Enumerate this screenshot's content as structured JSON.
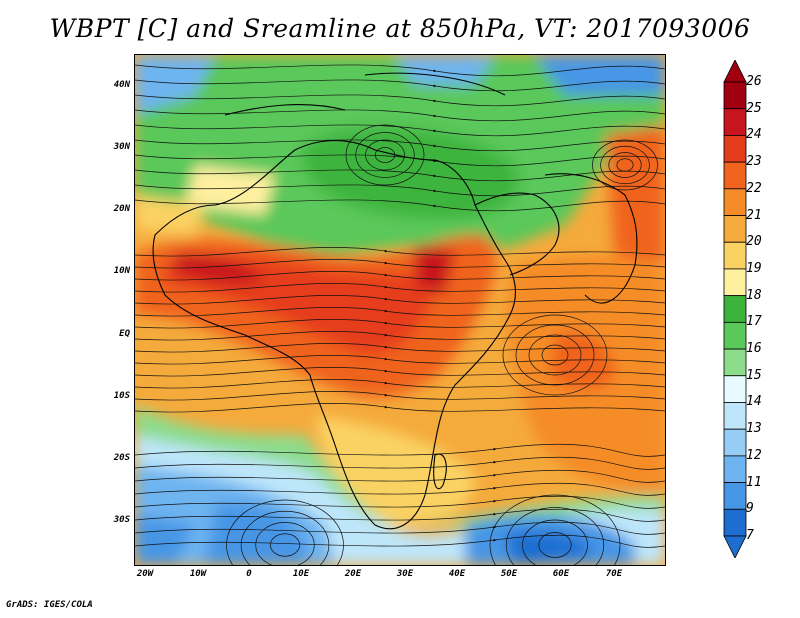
{
  "title": "WBPT [C] and Sreamline at 850hPa, VT: 2017093006",
  "lat_labels": [
    "40N",
    "30N",
    "20N",
    "10N",
    "EQ",
    "10S",
    "20S",
    "30S"
  ],
  "lon_labels": [
    "20W",
    "10W",
    "0",
    "10E",
    "20E",
    "30E",
    "40E",
    "50E",
    "60E",
    "70E"
  ],
  "colorbar": {
    "labels": [
      "26",
      "25",
      "24",
      "23",
      "22",
      "21",
      "20",
      "19",
      "18",
      "17",
      "16",
      "15",
      "14",
      "13",
      "12",
      "11",
      "9",
      "7"
    ],
    "colors": [
      "#a0000f",
      "#c8141e",
      "#e63c1e",
      "#f0641e",
      "#f58c28",
      "#f5aa3c",
      "#fad264",
      "#fff0a0",
      "#3cb43c",
      "#5ac85a",
      "#8cdc8c",
      "#e6faff",
      "#bee6fa",
      "#96cdf5",
      "#6eb4f0",
      "#4696e6",
      "#1e6ed2"
    ]
  },
  "footer": "GrADS: IGES/COLA"
}
